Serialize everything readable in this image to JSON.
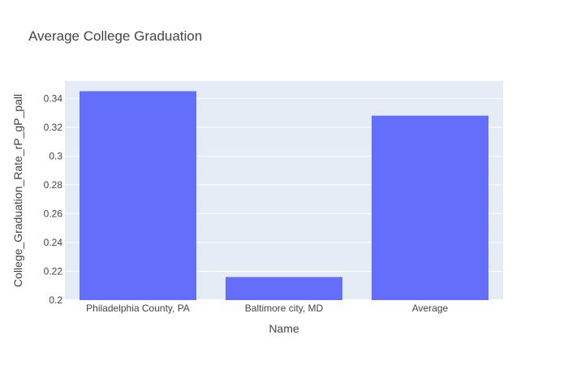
{
  "chart_data": {
    "type": "bar",
    "title": "Average College Graduation",
    "xlabel": "Name",
    "ylabel": "College_Graduation_Rate_rP_gP_pall",
    "categories": [
      "Philadelphia County, PA",
      "Baltimore city, MD",
      "Average"
    ],
    "values": [
      0.345,
      0.216,
      0.328
    ],
    "ylim": [
      0.2,
      0.352
    ],
    "yticks": [
      0.2,
      0.22,
      0.24,
      0.26,
      0.28,
      0.3,
      0.32,
      0.34
    ],
    "ytick_labels": [
      "0.2",
      "0.22",
      "0.24",
      "0.26",
      "0.28",
      "0.3",
      "0.32",
      "0.34"
    ],
    "grid": true,
    "legend": "none",
    "colors": {
      "bar": "#636efa",
      "plot_background": "#e5ecf6",
      "gridline": "#ffffff",
      "text": "#444444"
    }
  }
}
